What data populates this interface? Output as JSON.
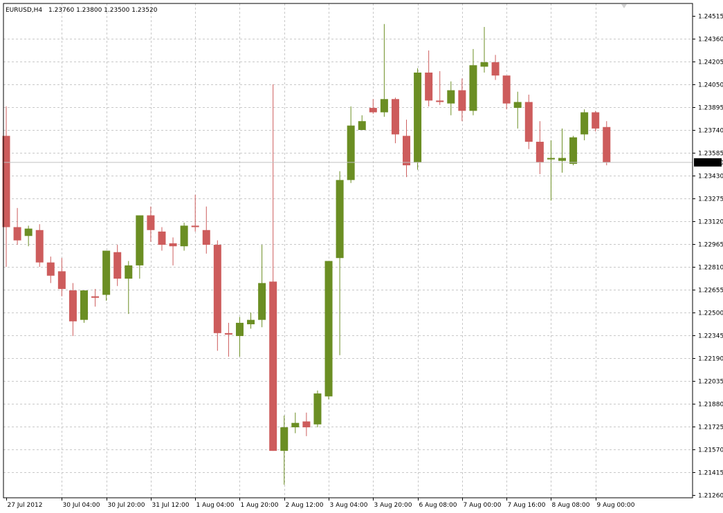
{
  "header": {
    "symbol_timeframe": "EURUSD,H4",
    "ohlc": "1.23760 1.23800 1.23500 1.23520"
  },
  "colors": {
    "bull": "#6b8e23",
    "bear": "#cd5c5c",
    "grid": "#c8c8c8",
    "axis": "#000000",
    "background": "#ffffff",
    "price_tag_bg": "#000000",
    "price_tag_text": "#ffffff"
  },
  "chart_data": {
    "type": "candlestick",
    "title": "EURUSD,H4",
    "ylim": [
      1.2126,
      1.2453
    ],
    "grid": true,
    "current_price": "1.23520",
    "y_ticks": [
      "1.24515",
      "1.24360",
      "1.24205",
      "1.24050",
      "1.23895",
      "1.23740",
      "1.23585",
      "1.23430",
      "1.23275",
      "1.23120",
      "1.22965",
      "1.22810",
      "1.22655",
      "1.22500",
      "1.22345",
      "1.22190",
      "1.22035",
      "1.21880",
      "1.21725",
      "1.21570",
      "1.21415",
      "1.21260"
    ],
    "x_ticks": [
      {
        "label": "27 Jul 2012",
        "index": 0
      },
      {
        "label": "30 Jul 04:00",
        "index": 5
      },
      {
        "label": "30 Jul 20:00",
        "index": 9
      },
      {
        "label": "31 Jul 12:00",
        "index": 13
      },
      {
        "label": "1 Aug 04:00",
        "index": 17
      },
      {
        "label": "1 Aug 20:00",
        "index": 21
      },
      {
        "label": "2 Aug 12:00",
        "index": 25
      },
      {
        "label": "3 Aug 04:00",
        "index": 29
      },
      {
        "label": "3 Aug 20:00",
        "index": 33
      },
      {
        "label": "6 Aug 08:00",
        "index": 37
      },
      {
        "label": "7 Aug 00:00",
        "index": 41
      },
      {
        "label": "7 Aug 16:00",
        "index": 45
      },
      {
        "label": "8 Aug 08:00",
        "index": 49
      },
      {
        "label": "9 Aug 00:00",
        "index": 53
      }
    ],
    "candles": [
      {
        "o": 1.237,
        "h": 1.239,
        "l": 1.2281,
        "c": 1.2308
      },
      {
        "o": 1.2308,
        "h": 1.2321,
        "l": 1.2296,
        "c": 1.2299
      },
      {
        "o": 1.2302,
        "h": 1.2309,
        "l": 1.2295,
        "c": 1.2307
      },
      {
        "o": 1.2306,
        "h": 1.231,
        "l": 1.2281,
        "c": 1.2284
      },
      {
        "o": 1.2284,
        "h": 1.2288,
        "l": 1.227,
        "c": 1.2275
      },
      {
        "o": 1.2278,
        "h": 1.2287,
        "l": 1.2261,
        "c": 1.2266
      },
      {
        "o": 1.2265,
        "h": 1.227,
        "l": 1.2234,
        "c": 1.2244
      },
      {
        "o": 1.2245,
        "h": 1.2265,
        "l": 1.2243,
        "c": 1.2265
      },
      {
        "o": 1.2261,
        "h": 1.2266,
        "l": 1.2254,
        "c": 1.226
      },
      {
        "o": 1.2262,
        "h": 1.2292,
        "l": 1.2258,
        "c": 1.2292
      },
      {
        "o": 1.2291,
        "h": 1.2296,
        "l": 1.2268,
        "c": 1.2273
      },
      {
        "o": 1.2273,
        "h": 1.2285,
        "l": 1.2249,
        "c": 1.2282
      },
      {
        "o": 1.2282,
        "h": 1.2316,
        "l": 1.2273,
        "c": 1.2316
      },
      {
        "o": 1.2316,
        "h": 1.2322,
        "l": 1.2298,
        "c": 1.2306
      },
      {
        "o": 1.2305,
        "h": 1.2308,
        "l": 1.2292,
        "c": 1.2296
      },
      {
        "o": 1.2297,
        "h": 1.2301,
        "l": 1.2282,
        "c": 1.2295
      },
      {
        "o": 1.2295,
        "h": 1.2311,
        "l": 1.2292,
        "c": 1.2309
      },
      {
        "o": 1.2309,
        "h": 1.233,
        "l": 1.2305,
        "c": 1.2308
      },
      {
        "o": 1.2306,
        "h": 1.2322,
        "l": 1.229,
        "c": 1.2296
      },
      {
        "o": 1.2296,
        "h": 1.2299,
        "l": 1.2224,
        "c": 1.2236
      },
      {
        "o": 1.2236,
        "h": 1.2243,
        "l": 1.222,
        "c": 1.2235
      },
      {
        "o": 1.2234,
        "h": 1.2247,
        "l": 1.222,
        "c": 1.2243
      },
      {
        "o": 1.2242,
        "h": 1.225,
        "l": 1.2239,
        "c": 1.2245
      },
      {
        "o": 1.2245,
        "h": 1.2296,
        "l": 1.224,
        "c": 1.227
      },
      {
        "o": 1.2271,
        "h": 1.2405,
        "l": 1.2156,
        "c": 1.2156
      },
      {
        "o": 1.2156,
        "h": 1.218,
        "l": 1.2133,
        "c": 1.2172
      },
      {
        "o": 1.2172,
        "h": 1.2182,
        "l": 1.2168,
        "c": 1.2175
      },
      {
        "o": 1.2176,
        "h": 1.2182,
        "l": 1.2166,
        "c": 1.2172
      },
      {
        "o": 1.2174,
        "h": 1.2197,
        "l": 1.2172,
        "c": 1.2195
      },
      {
        "o": 1.2193,
        "h": 1.2285,
        "l": 1.2191,
        "c": 1.2285
      },
      {
        "o": 1.2287,
        "h": 1.2346,
        "l": 1.2221,
        "c": 1.234
      },
      {
        "o": 1.234,
        "h": 1.239,
        "l": 1.2338,
        "c": 1.2377
      },
      {
        "o": 1.2374,
        "h": 1.2384,
        "l": 1.2376,
        "c": 1.238
      },
      {
        "o": 1.2389,
        "h": 1.2395,
        "l": 1.2385,
        "c": 1.2386
      },
      {
        "o": 1.2386,
        "h": 1.2446,
        "l": 1.2383,
        "c": 1.2395
      },
      {
        "o": 1.2395,
        "h": 1.2396,
        "l": 1.2365,
        "c": 1.2371
      },
      {
        "o": 1.237,
        "h": 1.2381,
        "l": 1.2342,
        "c": 1.235
      },
      {
        "o": 1.2352,
        "h": 1.2416,
        "l": 1.2347,
        "c": 1.2413
      },
      {
        "o": 1.2413,
        "h": 1.2428,
        "l": 1.239,
        "c": 1.2394
      },
      {
        "o": 1.2394,
        "h": 1.2414,
        "l": 1.2391,
        "c": 1.2393
      },
      {
        "o": 1.2392,
        "h": 1.2407,
        "l": 1.2384,
        "c": 1.2401
      },
      {
        "o": 1.2401,
        "h": 1.2409,
        "l": 1.238,
        "c": 1.2387
      },
      {
        "o": 1.2387,
        "h": 1.2429,
        "l": 1.2384,
        "c": 1.2418
      },
      {
        "o": 1.2417,
        "h": 1.2444,
        "l": 1.2413,
        "c": 1.242
      },
      {
        "o": 1.242,
        "h": 1.2425,
        "l": 1.2408,
        "c": 1.2411
      },
      {
        "o": 1.2411,
        "h": 1.2408,
        "l": 1.2388,
        "c": 1.2392
      },
      {
        "o": 1.2389,
        "h": 1.24,
        "l": 1.2375,
        "c": 1.2393
      },
      {
        "o": 1.2393,
        "h": 1.2398,
        "l": 1.2361,
        "c": 1.2366
      },
      {
        "o": 1.2366,
        "h": 1.238,
        "l": 1.2344,
        "c": 1.2352
      },
      {
        "o": 1.2354,
        "h": 1.2367,
        "l": 1.2326,
        "c": 1.2355
      },
      {
        "o": 1.2353,
        "h": 1.2375,
        "l": 1.2345,
        "c": 1.2355
      },
      {
        "o": 1.2351,
        "h": 1.237,
        "l": 1.235,
        "c": 1.2369
      },
      {
        "o": 1.2371,
        "h": 1.2388,
        "l": 1.2367,
        "c": 1.2386
      },
      {
        "o": 1.2386,
        "h": 1.2387,
        "l": 1.2373,
        "c": 1.2375
      },
      {
        "o": 1.2376,
        "h": 1.238,
        "l": 1.235,
        "c": 1.2352
      }
    ]
  }
}
